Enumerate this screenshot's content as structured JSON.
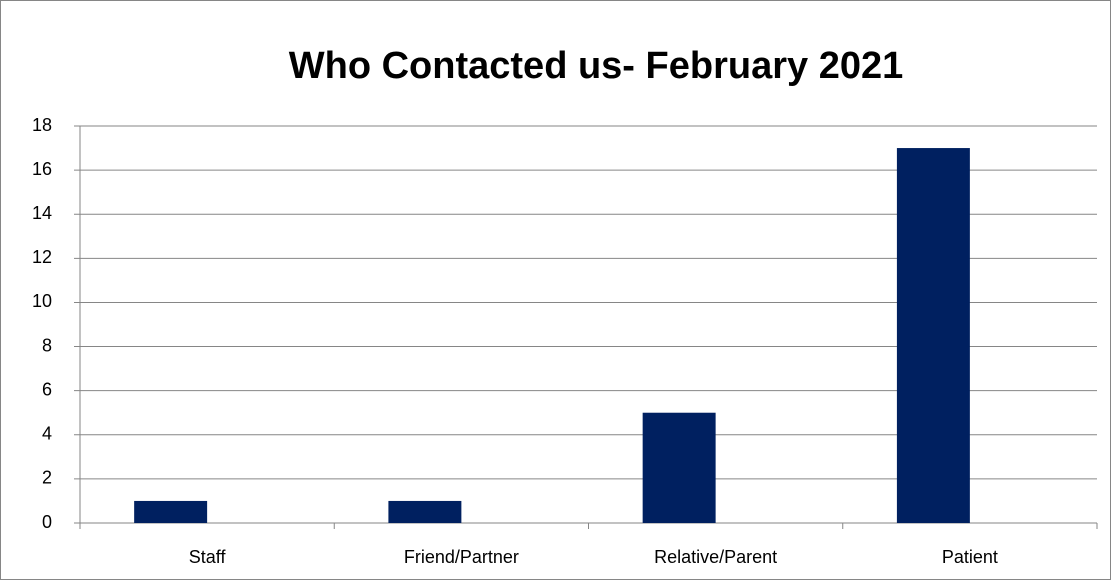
{
  "chart_data": {
    "type": "bar",
    "title": "Who Contacted us- February 2021",
    "categories": [
      "Staff",
      "Friend/Partner",
      "Relative/Parent",
      "Patient"
    ],
    "values": [
      1,
      1,
      5,
      17
    ],
    "color": "#002060",
    "ylim": [
      0,
      18
    ],
    "yticks": [
      0,
      2,
      4,
      6,
      8,
      10,
      12,
      14,
      16,
      18
    ],
    "grid": true
  }
}
